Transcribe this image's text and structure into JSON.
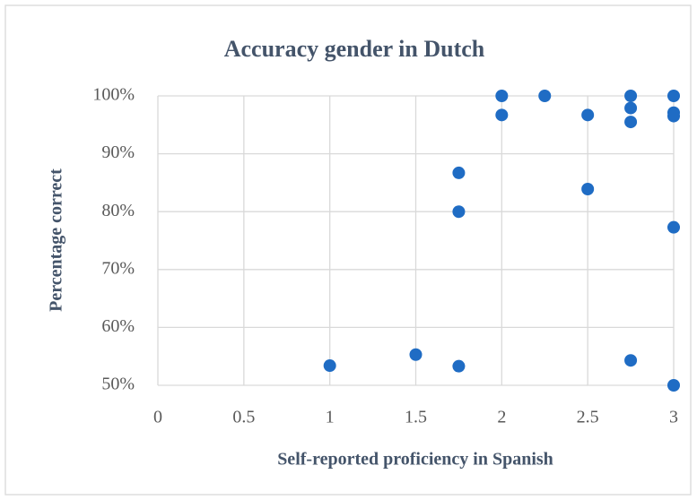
{
  "chart_data": {
    "type": "scatter",
    "title": "Accuracy gender in Dutch",
    "x_label": "Self-reported proficiency in Spanish",
    "y_label": "Percentage correct",
    "series": [
      {
        "color": "#1f6cc4",
        "x": [
          1,
          1.5,
          1.75,
          1.75,
          1.75,
          2,
          2,
          2.25,
          2.5,
          2.5,
          2.75,
          2.75,
          2.75,
          2.75,
          3,
          3,
          3,
          3,
          3
        ],
        "values": [
          53.4,
          55.3,
          53.3,
          86.7,
          80,
          100,
          96.7,
          100,
          96.7,
          83.9,
          100,
          97.9,
          95.5,
          54.3,
          100,
          97.1,
          96.5,
          77.3,
          50
        ]
      }
    ],
    "xlim": [
      0,
      3
    ],
    "xticks": [
      0,
      0.5,
      1,
      1.5,
      2,
      2.5,
      3
    ],
    "ylim": [
      50,
      100
    ],
    "yticks": [
      {
        "value": 50,
        "label": "50%"
      },
      {
        "value": 60,
        "label": "60%"
      },
      {
        "value": 70,
        "label": "70%"
      },
      {
        "value": 80,
        "label": "80%"
      },
      {
        "value": 90,
        "label": "90%"
      },
      {
        "value": 100,
        "label": "100%"
      }
    ],
    "grid": true
  }
}
